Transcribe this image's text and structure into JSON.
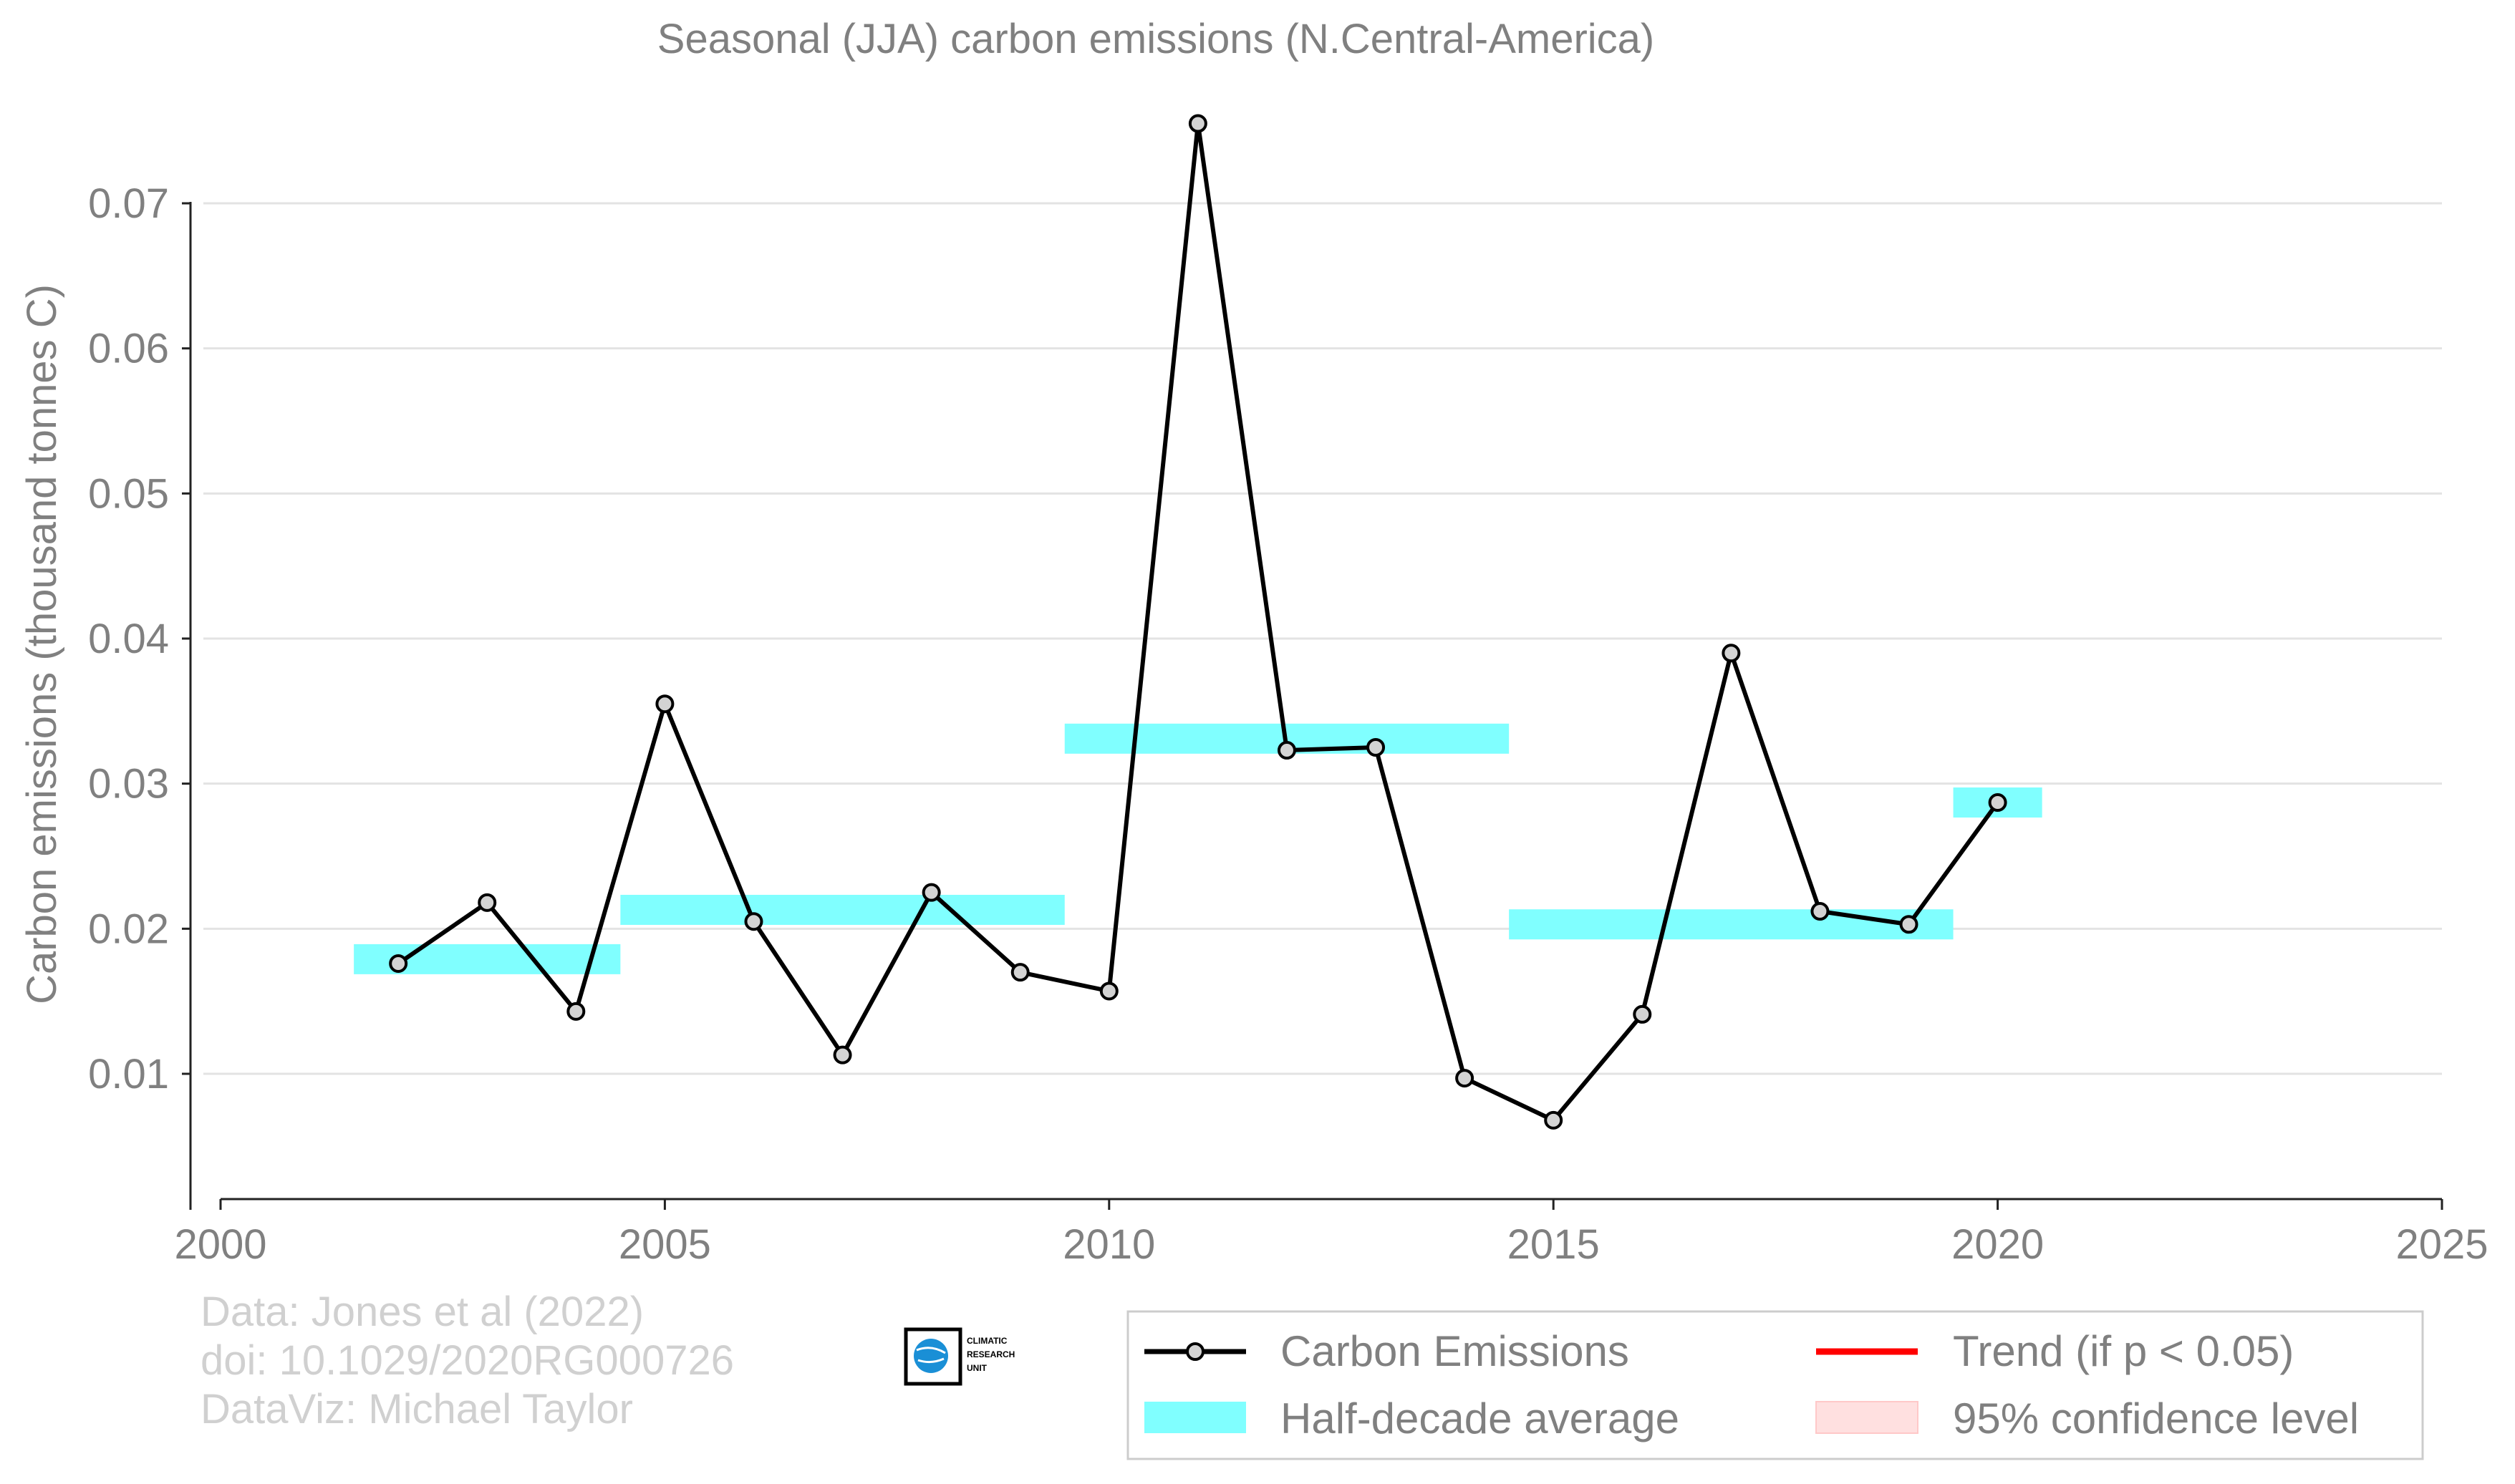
{
  "chart_data": {
    "type": "line",
    "title": "Seasonal (JJA) carbon emissions (N.Central-America)",
    "ylabel": "Carbon emissions (thousand tonnes C)",
    "xlabel": "",
    "xlim": [
      2000,
      2025
    ],
    "ylim": [
      0.001,
      0.078
    ],
    "x_ticks": [
      2000,
      2005,
      2010,
      2015,
      2020,
      2025
    ],
    "x_tick_labels": [
      "2000",
      "2005",
      "2010",
      "2015",
      "2020",
      "2025"
    ],
    "y_ticks": [
      0.01,
      0.02,
      0.03,
      0.04,
      0.05,
      0.06,
      0.07
    ],
    "y_tick_labels": [
      "0.01",
      "0.02",
      "0.03",
      "0.04",
      "0.05",
      "0.06",
      "0.07"
    ],
    "grid": "horizontal",
    "series": [
      {
        "name": "Carbon Emissions",
        "color": "#000000",
        "x": [
          2002,
          2003,
          2004,
          2005,
          2006,
          2007,
          2008,
          2009,
          2010,
          2011,
          2012,
          2013,
          2014,
          2015,
          2016,
          2017,
          2018,
          2019,
          2020
        ],
        "values": [
          0.0176,
          0.0218,
          0.0143,
          0.0355,
          0.0205,
          0.0113,
          0.0225,
          0.017,
          0.0157,
          0.0755,
          0.0323,
          0.0325,
          0.0097,
          0.0068,
          0.0141,
          0.039,
          0.0212,
          0.0203,
          0.0287
        ]
      }
    ],
    "half_decade_averages": {
      "name": "Half-decade average",
      "color": "#80ffff",
      "segments": [
        {
          "x_start": 2001.5,
          "x_end": 2004.5,
          "value": 0.0179
        },
        {
          "x_start": 2004.5,
          "x_end": 2009.5,
          "value": 0.0213
        },
        {
          "x_start": 2009.5,
          "x_end": 2014.5,
          "value": 0.0331
        },
        {
          "x_start": 2014.5,
          "x_end": 2019.5,
          "value": 0.0203
        },
        {
          "x_start": 2019.5,
          "x_end": 2020.5,
          "value": 0.0287
        }
      ]
    },
    "legend": {
      "position": "bottom-right",
      "entries": [
        {
          "label": "Carbon Emissions",
          "type": "line-marker",
          "color": "#000000"
        },
        {
          "label": "Trend (if p < 0.05)",
          "type": "line",
          "color": "#ff0000"
        },
        {
          "label": "Half-decade average",
          "type": "band",
          "color": "#80ffff"
        },
        {
          "label": "95% confidence level",
          "type": "band",
          "color": "#ffe0e0"
        }
      ]
    }
  },
  "credits": {
    "line1": "Data: Jones et al (2022)",
    "line2": "doi: 10.1029/2020RG000726",
    "line3": "DataViz: Michael Taylor"
  },
  "logo": {
    "line1": "CLIMATIC",
    "line2": "RESEARCH",
    "line3": "UNIT",
    "icon": "globe-icon"
  }
}
